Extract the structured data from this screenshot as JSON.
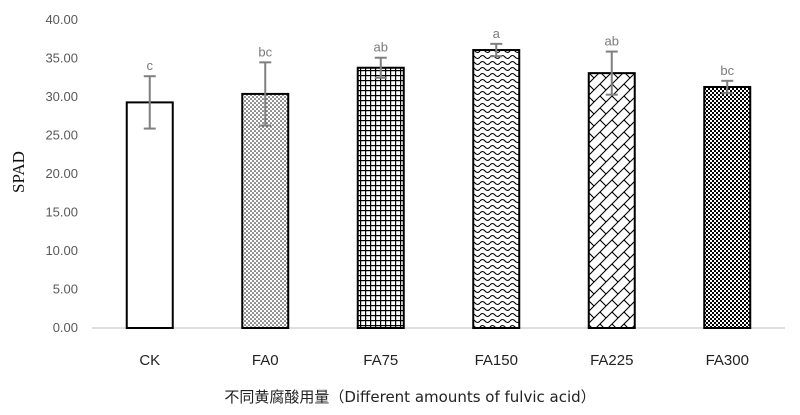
{
  "chart_data": {
    "type": "bar",
    "title": "",
    "xlabel": "不同黄腐酸用量（Different amounts of fulvic acid）",
    "ylabel": "SPAD",
    "ylim": [
      0,
      40
    ],
    "yticks": [
      "0.00",
      "5.00",
      "10.00",
      "15.00",
      "20.00",
      "25.00",
      "30.00",
      "35.00",
      "40.00"
    ],
    "grid": false,
    "categories": [
      "CK",
      "FA0",
      "FA75",
      "FA150",
      "FA225",
      "FA300"
    ],
    "values": [
      29.3,
      30.4,
      33.8,
      36.1,
      33.1,
      31.3
    ],
    "errors": [
      3.4,
      4.1,
      1.3,
      0.8,
      2.8,
      0.8
    ],
    "significance": [
      "c",
      "bc",
      "ab",
      "a",
      "ab",
      "bc"
    ],
    "fill_patterns": [
      "none",
      "fine-dots",
      "grid-squares",
      "waves",
      "diagonal-weave",
      "checkerboard"
    ],
    "colors": {
      "bar_stroke": "#000000",
      "error_bar": "#7f7f7f",
      "axis": "#bfbfbf"
    }
  }
}
